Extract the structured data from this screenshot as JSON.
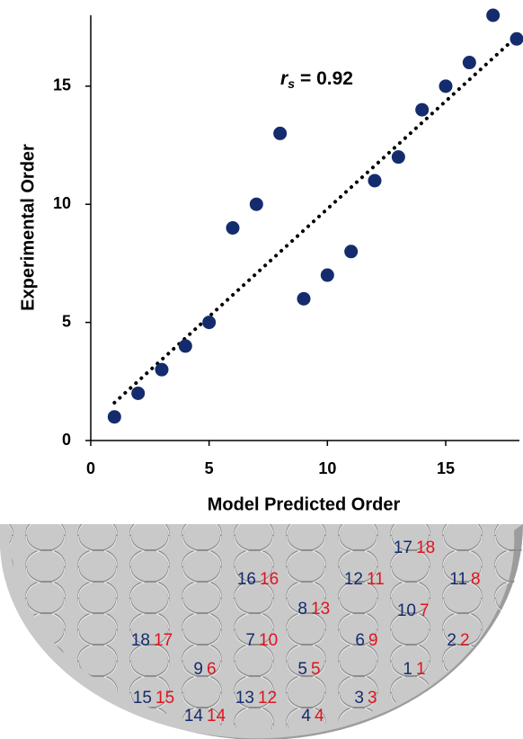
{
  "chart_data": {
    "type": "scatter",
    "xlabel": "Model Predicted Order",
    "ylabel": "Experimental Order",
    "x": [
      1,
      2,
      3,
      4,
      5,
      6,
      7,
      8,
      9,
      10,
      11,
      12,
      13,
      14,
      15,
      16,
      17,
      18
    ],
    "values": [
      1,
      2,
      3,
      4,
      5,
      9,
      10,
      13,
      6,
      7,
      8,
      11,
      12,
      14,
      15,
      16,
      18,
      17
    ],
    "color": "#142c6e",
    "trendline": {
      "x": [
        1,
        18
      ],
      "y": [
        1.6,
        17.1
      ],
      "color": "#000000"
    },
    "annotation": {
      "symbol": "r",
      "subscript": "s",
      "text": "= 0.92"
    },
    "xlim": [
      0,
      18
    ],
    "ylim": [
      0,
      18
    ],
    "xticks": [
      0,
      5,
      10,
      15
    ],
    "yticks": [
      0,
      5,
      10,
      15
    ]
  },
  "illustration": {
    "blue_color": "#142c6e",
    "red_color": "#e0141e",
    "labels": [
      {
        "blue": 17,
        "red": 18
      },
      {
        "blue": 16,
        "red": 16
      },
      {
        "blue": 12,
        "red": 11
      },
      {
        "blue": 11,
        "red": 8
      },
      {
        "blue": 8,
        "red": 13
      },
      {
        "blue": 10,
        "red": 7
      },
      {
        "blue": 18,
        "red": 17
      },
      {
        "blue": 7,
        "red": 10
      },
      {
        "blue": 6,
        "red": 9
      },
      {
        "blue": 2,
        "red": 2
      },
      {
        "blue": 9,
        "red": 6
      },
      {
        "blue": 5,
        "red": 5
      },
      {
        "blue": 1,
        "red": 1
      },
      {
        "blue": 15,
        "red": 15
      },
      {
        "blue": 13,
        "red": 12
      },
      {
        "blue": 3,
        "red": 3
      },
      {
        "blue": 14,
        "red": 14
      },
      {
        "blue": 4,
        "red": 4
      }
    ]
  }
}
